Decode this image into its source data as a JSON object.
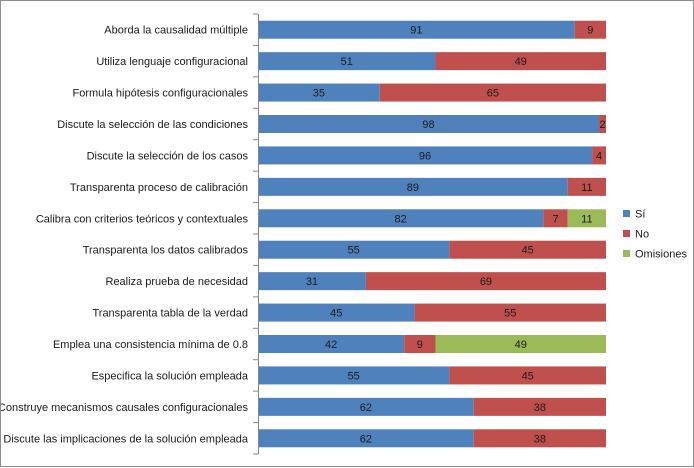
{
  "chart_data": {
    "type": "bar",
    "orientation": "horizontal",
    "stacked": true,
    "percent_stacked": true,
    "title": "",
    "xlabel": "",
    "ylabel": "",
    "xlim": [
      0,
      100
    ],
    "grid": false,
    "legend_position": "right",
    "categories": [
      "Aborda la causalidad múltiple",
      "Utiliza lenguaje configuracional",
      "Formula hipótesis configuracionales",
      "Discute la selección de las condiciones",
      "Discute la selección de los casos",
      "Transparenta proceso de calibración",
      "Calibra con criterios teóricos y contextuales",
      "Transparenta los datos calibrados",
      "Realiza prueba de necesidad",
      "Transparenta tabla de la verdad",
      "Emplea una consistencia mínima de 0.8",
      "Especifica la solución empleada",
      "Construye mecanismos causales configuracionales",
      "Discute las implicaciones de la solución empleada"
    ],
    "series": [
      {
        "name": "Sí",
        "color": "#4f81bd",
        "values": [
          91,
          51,
          35,
          98,
          96,
          89,
          82,
          55,
          31,
          45,
          42,
          55,
          62,
          62
        ]
      },
      {
        "name": "No",
        "color": "#c0504d",
        "values": [
          9,
          49,
          65,
          2,
          4,
          11,
          7,
          45,
          69,
          55,
          9,
          45,
          38,
          38
        ]
      },
      {
        "name": "Omisiones",
        "color": "#9bbb59",
        "values": [
          0,
          0,
          0,
          0,
          0,
          0,
          11,
          0,
          0,
          0,
          49,
          0,
          0,
          0
        ]
      }
    ]
  }
}
